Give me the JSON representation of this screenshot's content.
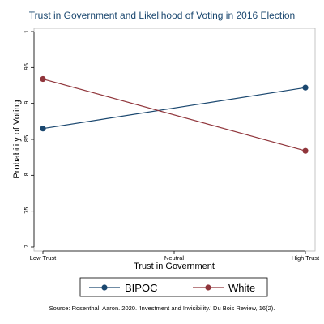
{
  "chart_data": {
    "type": "line",
    "title": "Trust in Government and Likelihood of Voting in 2016 Election",
    "xlabel": "Trust in Government",
    "ylabel": "Probability of Voting",
    "categories": [
      "Low Trust",
      "Neutral",
      "High Trust"
    ],
    "x": [
      0,
      2
    ],
    "xlim": [
      0,
      2
    ],
    "ylim": [
      0.7,
      1.0
    ],
    "yticks": [
      0.7,
      0.75,
      0.8,
      0.85,
      0.9,
      0.95,
      1.0
    ],
    "ytick_labels": [
      ".7",
      ".75",
      ".8",
      ".85",
      ".9",
      ".95",
      "1"
    ],
    "grid": false,
    "legend_position": "bottom",
    "series": [
      {
        "name": "BIPOC",
        "values": [
          0.865,
          0.922
        ],
        "color": "#1a476f"
      },
      {
        "name": "White",
        "values": [
          0.934,
          0.834
        ],
        "color": "#90353b"
      }
    ],
    "note": "Source: Rosenthal, Aaron. 2020. 'Investment and Invisibility.' Du Bois Review, 16(2)."
  }
}
